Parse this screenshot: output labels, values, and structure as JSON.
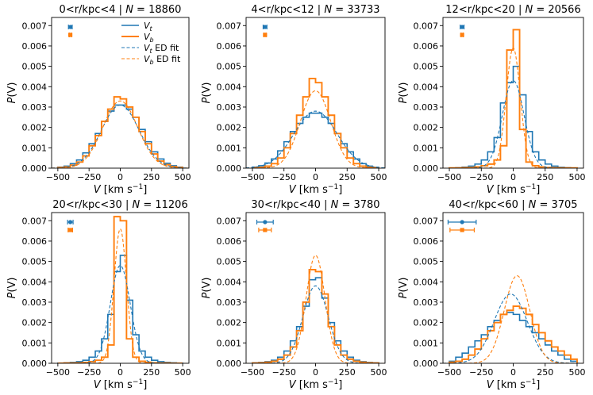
{
  "figure": {
    "colors": {
      "vt": "#1f77b4",
      "vb": "#ff7f0e"
    },
    "xlabel_main": "V",
    "xlabel_units": "[km s",
    "xlabel_exp": "−1",
    "xlabel_close": "]",
    "ylabel_P": "P",
    "ylabel_arg": "(V)",
    "legend": {
      "vt": {
        "sym": "V",
        "sub": "t",
        "suffix": ""
      },
      "vb": {
        "sym": "V",
        "sub": "b",
        "suffix": ""
      },
      "vt_fit": {
        "sym": "V",
        "sub": "t",
        "suffix": " ED fit"
      },
      "vb_fit": {
        "sym": "V",
        "sub": "b",
        "suffix": " ED fit"
      }
    },
    "x_tick_labels": [
      "−500",
      "−250",
      "0",
      "250",
      "500"
    ],
    "y_tick_labels": [
      "0.000",
      "0.001",
      "0.002",
      "0.003",
      "0.004",
      "0.005",
      "0.006",
      "0.007"
    ]
  },
  "chart_data": [
    {
      "type": "histogram",
      "title": "0<r/kpc<4 | N = 18860",
      "title_range": "0<r/kpc<4",
      "title_N": "N",
      "title_count": "= 18860",
      "xlim": [
        -550,
        550
      ],
      "ylim": [
        0,
        0.0074
      ],
      "xticks": [
        -500,
        -250,
        0,
        250,
        500
      ],
      "yticks": [
        0,
        0.001,
        0.002,
        0.003,
        0.004,
        0.005,
        0.006,
        0.007
      ],
      "bins": [
        -500,
        -450,
        -400,
        -350,
        -300,
        -250,
        -200,
        -150,
        -100,
        -50,
        0,
        50,
        100,
        150,
        200,
        250,
        300,
        350,
        400,
        450,
        500
      ],
      "series": [
        {
          "name": "V_t",
          "values": [
            5e-05,
            0.0001,
            0.00022,
            0.0004,
            0.00075,
            0.0012,
            0.0017,
            0.0023,
            0.0028,
            0.0031,
            0.0031,
            0.0029,
            0.0025,
            0.0019,
            0.0013,
            0.0008,
            0.00045,
            0.00024,
            0.00012,
            5e-05
          ]
        },
        {
          "name": "V_b",
          "values": [
            3e-05,
            6e-05,
            0.00015,
            0.0003,
            0.0006,
            0.0011,
            0.0016,
            0.0023,
            0.0029,
            0.0035,
            0.0034,
            0.003,
            0.0025,
            0.0018,
            0.0012,
            0.0007,
            0.00035,
            0.00017,
            8e-05,
            3e-05
          ]
        }
      ],
      "fits": [
        {
          "name": "V_t ED fit",
          "peak": 0.0031,
          "sigma": 150,
          "mu": 0
        },
        {
          "name": "V_b ED fit",
          "peak": 0.0033,
          "sigma": 140,
          "mu": 0
        }
      ],
      "errorbars": [
        {
          "series": "V_t",
          "center": -400,
          "halfwidth": 15
        },
        {
          "series": "V_b",
          "center": -400,
          "halfwidth": 8
        }
      ],
      "show_legend": true
    },
    {
      "type": "histogram",
      "title": "4<r/kpc<12 | N = 33733",
      "title_range": "4<r/kpc<12",
      "title_N": "N",
      "title_count": "= 33733",
      "xlim": [
        -550,
        550
      ],
      "ylim": [
        0,
        0.0074
      ],
      "xticks": [
        -500,
        -250,
        0,
        250,
        500
      ],
      "yticks": [
        0,
        0.001,
        0.002,
        0.003,
        0.004,
        0.005,
        0.006,
        0.007
      ],
      "bins": [
        -500,
        -450,
        -400,
        -350,
        -300,
        -250,
        -200,
        -150,
        -100,
        -50,
        0,
        50,
        100,
        150,
        200,
        250,
        300,
        350,
        400,
        450,
        500
      ],
      "series": [
        {
          "name": "V_t",
          "values": [
            5e-05,
            0.00012,
            0.00025,
            0.00045,
            0.00085,
            0.0013,
            0.0018,
            0.0022,
            0.0025,
            0.0027,
            0.0027,
            0.0025,
            0.0022,
            0.0017,
            0.0012,
            0.0008,
            0.00045,
            0.00022,
            0.0001,
            4e-05
          ]
        },
        {
          "name": "V_b",
          "values": [
            2e-05,
            4e-05,
            0.0001,
            0.00022,
            0.0005,
            0.001,
            0.0017,
            0.0026,
            0.0035,
            0.0044,
            0.0042,
            0.0035,
            0.0026,
            0.0017,
            0.001,
            0.0005,
            0.00022,
            0.0001,
            4e-05,
            2e-05
          ]
        }
      ],
      "fits": [
        {
          "name": "V_t ED fit",
          "peak": 0.0028,
          "sigma": 170,
          "mu": 0
        },
        {
          "name": "V_b ED fit",
          "peak": 0.0038,
          "sigma": 120,
          "mu": 0
        }
      ],
      "errorbars": [
        {
          "series": "V_t",
          "center": -400,
          "halfwidth": 15
        },
        {
          "series": "V_b",
          "center": -400,
          "halfwidth": 8
        }
      ],
      "show_legend": false
    },
    {
      "type": "histogram",
      "title": "12<r/kpc<20 | N = 20566",
      "title_range": "12<r/kpc<20",
      "title_N": "N",
      "title_count": "= 20566",
      "xlim": [
        -550,
        550
      ],
      "ylim": [
        0,
        0.0074
      ],
      "xticks": [
        -500,
        -250,
        0,
        250,
        500
      ],
      "yticks": [
        0,
        0.001,
        0.002,
        0.003,
        0.004,
        0.005,
        0.006,
        0.007
      ],
      "bins": [
        -500,
        -450,
        -400,
        -350,
        -300,
        -250,
        -200,
        -150,
        -100,
        -50,
        0,
        50,
        100,
        150,
        200,
        250,
        300,
        350,
        400,
        450,
        500
      ],
      "series": [
        {
          "name": "V_t",
          "values": [
            1e-05,
            2e-05,
            5e-05,
            0.0001,
            0.0002,
            0.0004,
            0.0008,
            0.0015,
            0.0032,
            0.0042,
            0.005,
            0.0036,
            0.0018,
            0.0008,
            0.0004,
            0.0002,
            0.0001,
            4e-05,
            2e-05,
            1e-05
          ]
        },
        {
          "name": "V_b",
          "values": [
            1e-05,
            1e-05,
            2e-05,
            3e-05,
            6e-05,
            0.00012,
            0.0002,
            0.0004,
            0.0011,
            0.0058,
            0.0068,
            0.0019,
            0.0003,
            0.00012,
            6e-05,
            3e-05,
            2e-05,
            1e-05,
            1e-05,
            1e-05
          ]
        }
      ],
      "fits": [
        {
          "name": "V_t ED fit",
          "peak": 0.0043,
          "sigma": 85,
          "mu": 0
        },
        {
          "name": "V_b ED fit",
          "peak": 0.0059,
          "sigma": 55,
          "mu": 0
        }
      ],
      "errorbars": [
        {
          "series": "V_t",
          "center": -400,
          "halfwidth": 15
        },
        {
          "series": "V_b",
          "center": -400,
          "halfwidth": 8
        }
      ],
      "show_legend": false
    },
    {
      "type": "histogram",
      "title": "20<r/kpc<30 | N = 11206",
      "title_range": "20<r/kpc<30",
      "title_N": "N",
      "title_count": "= 11206",
      "xlim": [
        -550,
        550
      ],
      "ylim": [
        0,
        0.0074
      ],
      "xticks": [
        -500,
        -250,
        0,
        250,
        500
      ],
      "yticks": [
        0,
        0.001,
        0.002,
        0.003,
        0.004,
        0.005,
        0.006,
        0.007
      ],
      "bins": [
        -500,
        -450,
        -400,
        -350,
        -300,
        -250,
        -200,
        -150,
        -100,
        -50,
        0,
        50,
        100,
        150,
        200,
        250,
        300,
        350,
        400,
        450,
        500
      ],
      "series": [
        {
          "name": "V_t",
          "values": [
            1e-05,
            2e-05,
            4e-05,
            8e-05,
            0.00015,
            0.0003,
            0.0006,
            0.0012,
            0.0024,
            0.0045,
            0.0053,
            0.0031,
            0.0014,
            0.0006,
            0.0003,
            0.00015,
            8e-05,
            4e-05,
            2e-05,
            1e-05
          ]
        },
        {
          "name": "V_b",
          "values": [
            0,
            1e-05,
            1e-05,
            2e-05,
            4e-05,
            8e-05,
            0.00015,
            0.0003,
            0.0009,
            0.0072,
            0.007,
            0.0012,
            0.0003,
            0.0001,
            5e-05,
            2e-05,
            1e-05,
            1e-05,
            0,
            0
          ]
        }
      ],
      "fits": [
        {
          "name": "V_t ED fit",
          "peak": 0.0048,
          "sigma": 80,
          "mu": 0
        },
        {
          "name": "V_b ED fit",
          "peak": 0.0066,
          "sigma": 50,
          "mu": 0
        }
      ],
      "errorbars": [
        {
          "series": "V_t",
          "center": -400,
          "halfwidth": 22
        },
        {
          "series": "V_b",
          "center": -400,
          "halfwidth": 18
        }
      ],
      "show_legend": false
    },
    {
      "type": "histogram",
      "title": "30<r/kpc<40 | N = 3780",
      "title_range": "30<r/kpc<40",
      "title_N": "N",
      "title_count": "= 3780",
      "xlim": [
        -550,
        550
      ],
      "ylim": [
        0,
        0.0074
      ],
      "xticks": [
        -500,
        -250,
        0,
        250,
        500
      ],
      "yticks": [
        0,
        0.001,
        0.002,
        0.003,
        0.004,
        0.005,
        0.006,
        0.007
      ],
      "bins": [
        -500,
        -450,
        -400,
        -350,
        -300,
        -250,
        -200,
        -150,
        -100,
        -50,
        0,
        50,
        100,
        150,
        200,
        250,
        300,
        350,
        400,
        450,
        500
      ],
      "series": [
        {
          "name": "V_t",
          "values": [
            2e-05,
            4e-05,
            8e-05,
            0.00015,
            0.0003,
            0.0006,
            0.0011,
            0.0018,
            0.0028,
            0.0041,
            0.0042,
            0.0032,
            0.002,
            0.0011,
            0.0006,
            0.0003,
            0.00015,
            8e-05,
            4e-05,
            2e-05
          ]
        },
        {
          "name": "V_b",
          "values": [
            1e-05,
            2e-05,
            5e-05,
            0.0001,
            0.0002,
            0.0004,
            0.0008,
            0.0016,
            0.003,
            0.0046,
            0.0045,
            0.0034,
            0.0018,
            0.0009,
            0.0004,
            0.0002,
            0.0001,
            5e-05,
            2e-05,
            1e-05
          ]
        }
      ],
      "fits": [
        {
          "name": "V_t ED fit",
          "peak": 0.0038,
          "sigma": 100,
          "mu": 0
        },
        {
          "name": "V_b ED fit",
          "peak": 0.0053,
          "sigma": 75,
          "mu": 0
        }
      ],
      "errorbars": [
        {
          "series": "V_t",
          "center": -400,
          "halfwidth": 65
        },
        {
          "series": "V_b",
          "center": -400,
          "halfwidth": 50
        }
      ],
      "show_legend": false
    },
    {
      "type": "histogram",
      "title": "40<r/kpc<60 | N = 3705",
      "title_range": "40<r/kpc<60",
      "title_N": "N",
      "title_count": "= 3705",
      "xlim": [
        -550,
        550
      ],
      "ylim": [
        0,
        0.0074
      ],
      "xticks": [
        -500,
        -250,
        0,
        250,
        500
      ],
      "yticks": [
        0,
        0.001,
        0.002,
        0.003,
        0.004,
        0.005,
        0.006,
        0.007
      ],
      "bins": [
        -500,
        -450,
        -400,
        -350,
        -300,
        -250,
        -200,
        -150,
        -100,
        -50,
        0,
        50,
        100,
        150,
        200,
        250,
        300,
        350,
        400,
        450,
        500
      ],
      "series": [
        {
          "name": "V_t",
          "values": [
            0.0001,
            0.0003,
            0.0005,
            0.0008,
            0.0011,
            0.0014,
            0.0018,
            0.0021,
            0.0024,
            0.0025,
            0.0024,
            0.0021,
            0.0018,
            0.0015,
            0.0012,
            0.0009,
            0.0006,
            0.0004,
            0.0002,
            0.0001
          ]
        },
        {
          "name": "V_b",
          "values": [
            5e-05,
            0.0001,
            0.0002,
            0.0004,
            0.0007,
            0.0012,
            0.0016,
            0.002,
            0.0024,
            0.0026,
            0.0028,
            0.0027,
            0.0024,
            0.0019,
            0.0015,
            0.0011,
            0.0008,
            0.0006,
            0.0004,
            0.0002
          ]
        }
      ],
      "fits": [
        {
          "name": "V_t ED fit",
          "peak": 0.0034,
          "sigma": 130,
          "mu": -20
        },
        {
          "name": "V_b ED fit",
          "peak": 0.0043,
          "sigma": 100,
          "mu": 30
        }
      ],
      "errorbars": [
        {
          "series": "V_t",
          "center": -400,
          "halfwidth": 110
        },
        {
          "series": "V_b",
          "center": -400,
          "halfwidth": 95
        }
      ],
      "show_legend": false
    }
  ]
}
